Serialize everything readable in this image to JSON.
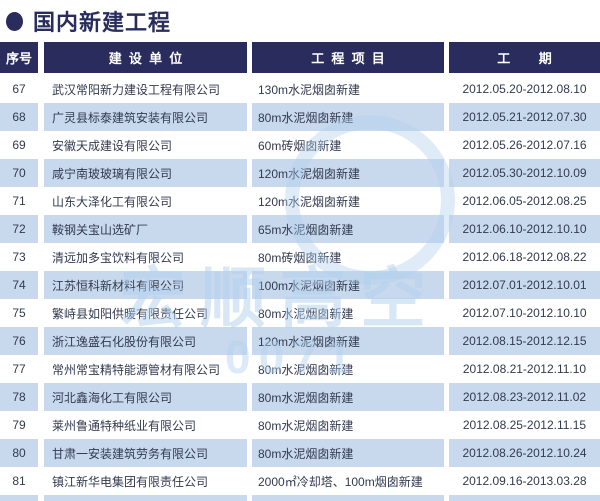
{
  "page": {
    "title": "国内新建工程"
  },
  "table": {
    "headers": {
      "no": "序号",
      "company": "建设单位",
      "project": "工程项目",
      "period": "工期"
    },
    "rows": [
      {
        "no": "67",
        "company": "武汉常阳新力建设工程有限公司",
        "project": "130m水泥烟囱新建",
        "period": "2012.05.20-2012.08.10"
      },
      {
        "no": "68",
        "company": "广灵县标泰建筑安装有限公司",
        "project": "80m水泥烟囱新建",
        "period": "2012.05.21-2012.07.30"
      },
      {
        "no": "69",
        "company": "安徽天成建设有限公司",
        "project": "60m砖烟囱新建",
        "period": "2012.05.26-2012.07.16"
      },
      {
        "no": "70",
        "company": "咸宁南玻玻璃有限公司",
        "project": "120m水泥烟囱新建",
        "period": "2012.05.30-2012.10.09"
      },
      {
        "no": "71",
        "company": "山东大泽化工有限公司",
        "project": "120m水泥烟囱新建",
        "period": "2012.06.05-2012.08.25"
      },
      {
        "no": "72",
        "company": "鞍钢关宝山选矿厂",
        "project": "65m水泥烟囱新建",
        "period": "2012.06.10-2012.10.10"
      },
      {
        "no": "73",
        "company": "清远加多宝饮料有限公司",
        "project": "80m砖烟囱新建",
        "period": "2012.06.18-2012.08.22"
      },
      {
        "no": "74",
        "company": "江苏恒科新材料有限公司",
        "project": "100m水泥烟囱新建",
        "period": "2012.07.01-2012.10.01"
      },
      {
        "no": "75",
        "company": "繁峙县如阳供暖有限责任公司",
        "project": "80m水泥烟囱新建",
        "period": "2012.07.10-2012.10.10"
      },
      {
        "no": "76",
        "company": "浙江逸盛石化股份有限公司",
        "project": "120m水泥烟囱新建",
        "period": "2012.08.15-2012.12.15"
      },
      {
        "no": "77",
        "company": "常州常宝精特能源管材有限公司",
        "project": "80m水泥烟囱新建",
        "period": "2012.08.21-2012.11.10"
      },
      {
        "no": "78",
        "company": "河北鑫海化工有限公司",
        "project": "80m水泥烟囱新建",
        "period": "2012.08.23-2012.11.02"
      },
      {
        "no": "79",
        "company": "莱州鲁通特种纸业有限公司",
        "project": "80m水泥烟囱新建",
        "period": "2012.08.25-2012.11.15"
      },
      {
        "no": "80",
        "company": "甘肃一安装建筑劳务有限公司",
        "project": "80m水泥烟囱新建",
        "period": "2012.08.26-2012.10.24"
      },
      {
        "no": "81",
        "company": "镇江新华电集团有限责任公司",
        "project": "2000㎡冷却塔、100m烟囱新建",
        "period": "2012.09.16-2013.03.28"
      }
    ]
  },
  "watermark": {
    "text": "宏顺高空",
    "digits_fragment": "0071"
  },
  "colors": {
    "navy": "#292c5c",
    "row_alt": "#c8d9ee",
    "watermark_blue": "#b0d0ec"
  }
}
